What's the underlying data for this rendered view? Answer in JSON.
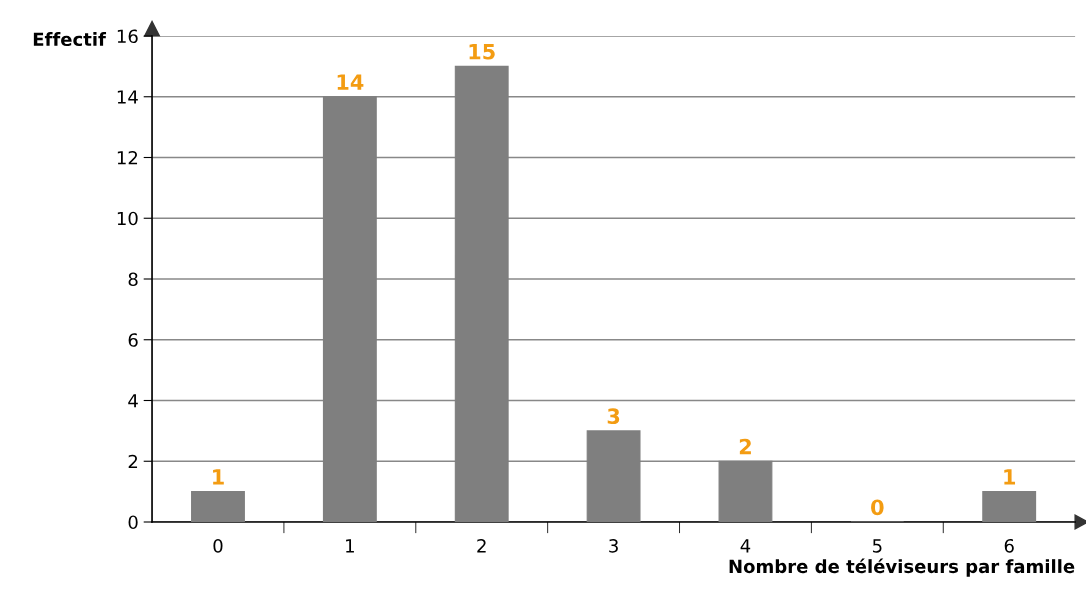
{
  "chart_data": {
    "type": "bar",
    "xlabel": "Nombre de téléviseurs par famille",
    "ylabel": "Effectif",
    "categories": [
      "0",
      "1",
      "2",
      "3",
      "4",
      "5",
      "6"
    ],
    "values": [
      1,
      14,
      15,
      3,
      2,
      0,
      1
    ],
    "color": "#7f7f7f",
    "ylim": [
      0,
      16
    ],
    "yticks": [
      0,
      2,
      4,
      6,
      8,
      10,
      12,
      14,
      16
    ],
    "grid": "y",
    "data_labels": true
  }
}
